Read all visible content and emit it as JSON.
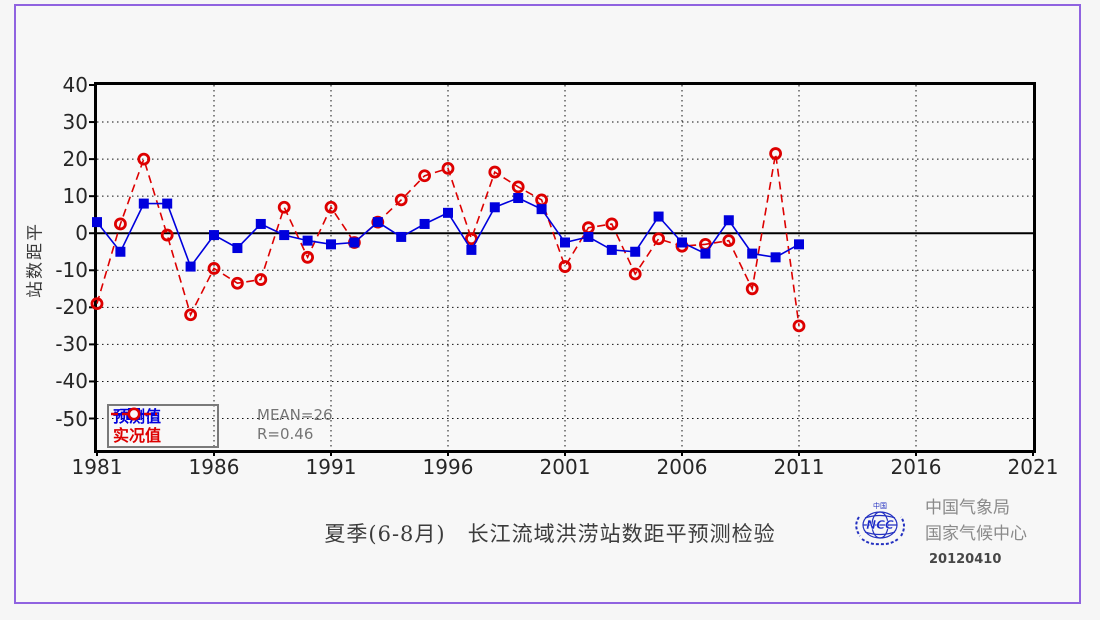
{
  "page": {
    "border_color": "#9063e0",
    "background": "#f7f7f7"
  },
  "chart_data": {
    "type": "line",
    "title": "夏季(6-8月)　长江流域洪涝站数距平预测检验",
    "ylabel": "站数距平",
    "x": [
      1981,
      1982,
      1983,
      1984,
      1985,
      1986,
      1987,
      1988,
      1989,
      1990,
      1991,
      1992,
      1993,
      1994,
      1995,
      1996,
      1997,
      1998,
      1999,
      2000,
      2001,
      2002,
      2003,
      2004,
      2005,
      2006,
      2007,
      2008,
      2009,
      2010,
      2011
    ],
    "series": [
      {
        "name": "预测值",
        "color": "#0000dd",
        "marker": "square-filled",
        "line": "solid",
        "values": [
          3,
          -5,
          8,
          8,
          -9,
          -0.5,
          -4,
          2.5,
          -0.5,
          -2,
          -3,
          -2.5,
          3,
          -1,
          2.5,
          5.5,
          -4.5,
          7,
          9.5,
          6.5,
          -2.5,
          -1,
          -4.5,
          -5,
          4.5,
          -2.5,
          -5.5,
          3.5,
          -5.5,
          -6.5,
          -3
        ]
      },
      {
        "name": "实况值",
        "color": "#dd0000",
        "marker": "circle-open",
        "line": "dashed",
        "values": [
          -19,
          2.5,
          20,
          -0.5,
          -22,
          -9.5,
          -13.5,
          -12.5,
          7,
          -6.5,
          7,
          -2.5,
          3,
          9,
          15.5,
          17.5,
          -1.5,
          16.5,
          12.5,
          9,
          -9,
          1.5,
          2.5,
          -11,
          -1.5,
          -3.5,
          -3,
          -2,
          -15,
          21.5,
          -25
        ]
      }
    ],
    "xlim": [
      1981,
      2021
    ],
    "ylim": [
      -58.5,
      40
    ],
    "xticks": [
      1981,
      1986,
      1991,
      1996,
      2001,
      2006,
      2011,
      2016,
      2021
    ],
    "yticks": [
      40,
      30,
      20,
      10,
      0,
      -10,
      -20,
      -30,
      -40,
      -50
    ],
    "grid": "dotted",
    "zero_line": true,
    "legend_position": "bottom-left",
    "annotations": {
      "mean": "MEAN=26",
      "r": "R=0.46"
    }
  },
  "footer": {
    "title": "夏季(6-8月)　长江流域洪涝站数距平预测检验",
    "org_line1": "中国气象局",
    "org_line2": "国家气候中心",
    "date": "20120410",
    "logo_text": "NCC",
    "logo_top_text": "中国"
  }
}
